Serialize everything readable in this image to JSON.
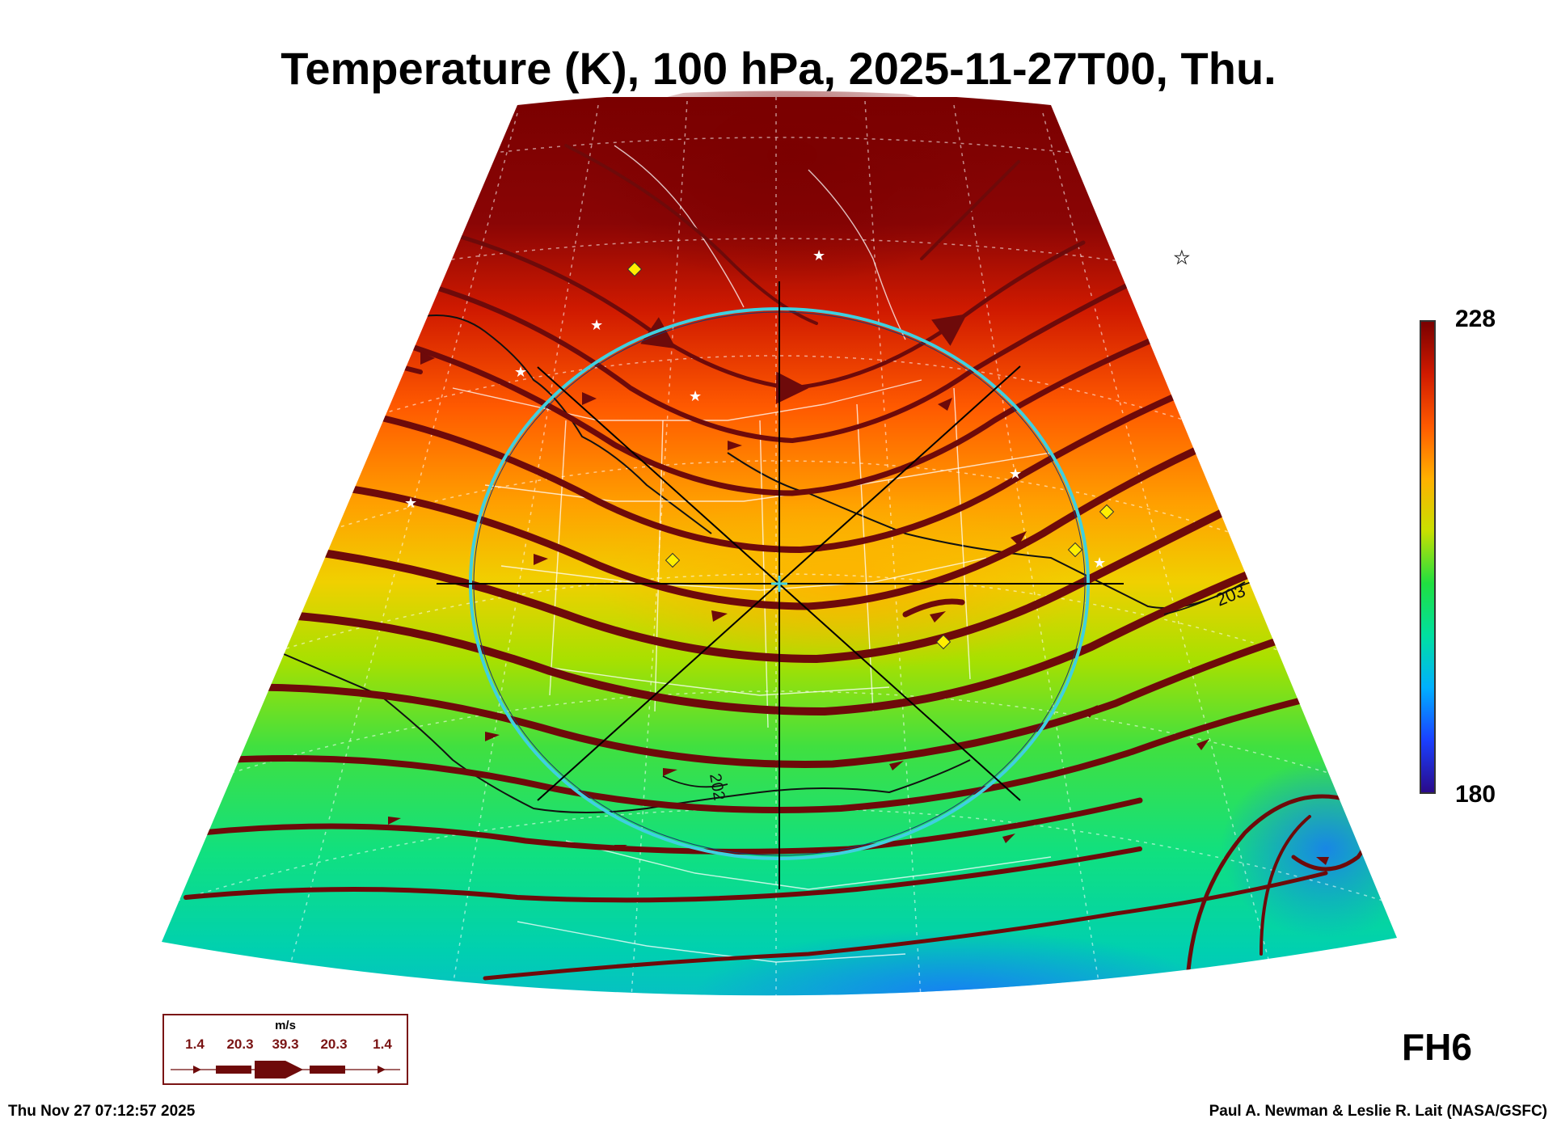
{
  "title": "Temperature (K), 100 hPa, 2025-11-27T00, Thu.",
  "colorbar": {
    "max_label": "228",
    "min_label": "180",
    "max": 228,
    "min": 180,
    "stops": [
      "#2a0a8a",
      "#1a40ff",
      "#00b0ff",
      "#00e0a0",
      "#20e040",
      "#c8e000",
      "#ffb000",
      "#ff5a00",
      "#d01a00",
      "#7a0000"
    ]
  },
  "contour_labels": [
    "203",
    "202"
  ],
  "forecast_hour": "FH6",
  "wind_legend": {
    "unit": "m/s",
    "values": [
      "1.4",
      "20.3",
      "39.3",
      "20.3",
      "1.4"
    ],
    "color": "#6e0a0a"
  },
  "footer": {
    "timestamp": "Thu Nov 27 07:12:57 2025",
    "credit": "Paul A. Newman & Leslie R. Lait (NASA/GSFC)"
  },
  "map": {
    "projection": "polar sector",
    "overlay": "target circle with crosshair centered over central US",
    "overlay_color": "#3fd0e0",
    "streamline_color": "#6e0a0a",
    "grid": true,
    "coastlines": "black",
    "borders": "white",
    "station_markers": [
      "white-star",
      "yellow-diamond"
    ]
  }
}
